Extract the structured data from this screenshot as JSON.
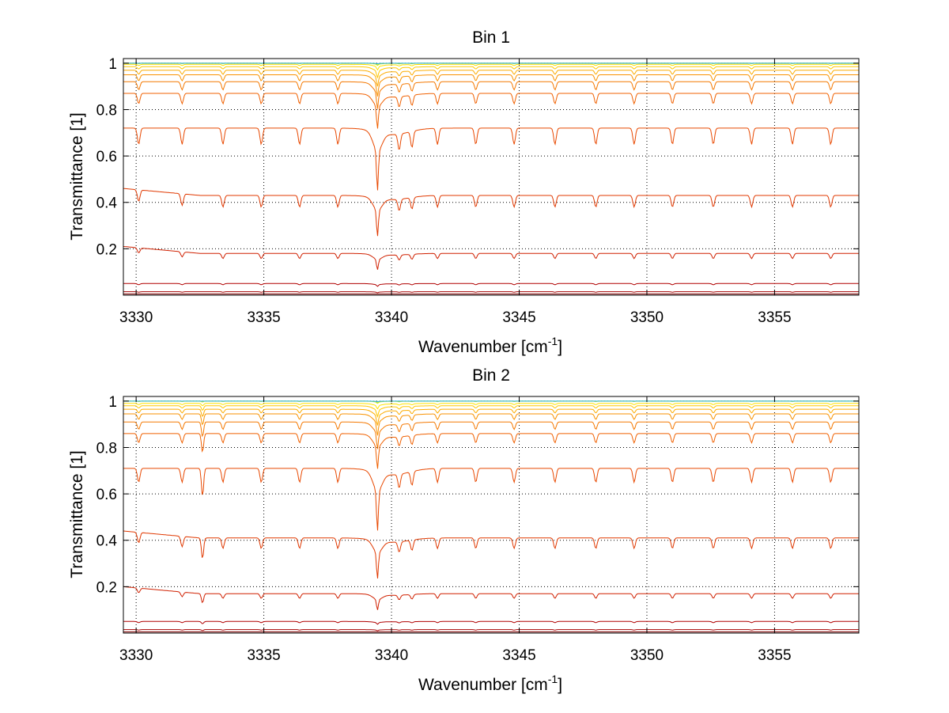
{
  "chart_data": [
    {
      "type": "line",
      "title": "Bin 1",
      "xlabel": "Wavenumber [cm",
      "xlabel_sup": "-1",
      "xlabel_end": "]",
      "ylabel": "Transmittance [1]",
      "xlim": [
        3329.5,
        3358.3
      ],
      "ylim": [
        0.0,
        1.02
      ],
      "xticks": [
        3330,
        3335,
        3340,
        3345,
        3350,
        3355
      ],
      "xtick_labels": [
        "3330",
        "3335",
        "3340",
        "3345",
        "3350",
        "3355"
      ],
      "yticks": [
        0.2,
        0.4,
        0.6,
        0.8,
        1.0
      ],
      "ytick_labels": [
        "0.2",
        "0.4",
        "0.6",
        "0.8",
        "1"
      ],
      "grid": true,
      "main_line": {
        "x": 3339.45,
        "widths": [
          0.05,
          0.25,
          0.9
        ]
      },
      "lines": [
        3330.1,
        3331.8,
        3333.4,
        3334.9,
        3336.4,
        3337.9,
        3340.3,
        3340.8,
        3341.8,
        3343.3,
        3344.8,
        3346.4,
        3348.0,
        3349.5,
        3351.0,
        3352.6,
        3354.1,
        3355.7,
        3357.2
      ],
      "series": [
        {
          "baseline": 0.005,
          "depth_main": 0.0,
          "depth_lines": 0.0,
          "color": "#7f0000"
        },
        {
          "baseline": 0.015,
          "depth_main": 0.004,
          "depth_lines": 0.002,
          "color": "#a50000"
        },
        {
          "baseline": 0.05,
          "depth_main": 0.01,
          "depth_lines": 0.005,
          "color": "#b00000"
        },
        {
          "baseline": 0.18,
          "depth_main": 0.06,
          "depth_lines": 0.022,
          "color": "#d02000"
        },
        {
          "baseline": 0.43,
          "depth_main": 0.15,
          "depth_lines": 0.05,
          "color": "#e03800"
        },
        {
          "baseline": 0.72,
          "depth_main": 0.23,
          "depth_lines": 0.07,
          "color": "#e84800"
        },
        {
          "baseline": 0.87,
          "depth_main": 0.13,
          "depth_lines": 0.045,
          "color": "#f06000"
        },
        {
          "baseline": 0.92,
          "depth_main": 0.1,
          "depth_lines": 0.035,
          "color": "#f47800"
        },
        {
          "baseline": 0.95,
          "depth_main": 0.08,
          "depth_lines": 0.026,
          "color": "#f89200"
        },
        {
          "baseline": 0.97,
          "depth_main": 0.06,
          "depth_lines": 0.018,
          "color": "#fcac00"
        },
        {
          "baseline": 0.985,
          "depth_main": 0.04,
          "depth_lines": 0.01,
          "color": "#ffc800"
        },
        {
          "baseline": 0.995,
          "depth_main": 0.02,
          "depth_lines": 0.005,
          "color": "#ffe400"
        },
        {
          "baseline": 1.0,
          "depth_main": 0.008,
          "depth_lines": 0.002,
          "color": "#d8f000"
        },
        {
          "baseline": 1.0,
          "depth_main": 0.004,
          "depth_lines": 0.001,
          "color": "#80d860"
        },
        {
          "baseline": 1.0,
          "depth_main": 0.002,
          "depth_lines": 0.0,
          "color": "#30b0e0"
        }
      ],
      "extra_line": null
    },
    {
      "type": "line",
      "title": "Bin 2",
      "xlabel": "Wavenumber [cm",
      "xlabel_sup": "-1",
      "xlabel_end": "]",
      "ylabel": "Transmittance [1]",
      "xlim": [
        3329.5,
        3358.3
      ],
      "ylim": [
        0.0,
        1.02
      ],
      "xticks": [
        3330,
        3335,
        3340,
        3345,
        3350,
        3355
      ],
      "xtick_labels": [
        "3330",
        "3335",
        "3340",
        "3345",
        "3350",
        "3355"
      ],
      "yticks": [
        0.2,
        0.4,
        0.6,
        0.8,
        1.0
      ],
      "ytick_labels": [
        "0.2",
        "0.4",
        "0.6",
        "0.8",
        "1"
      ],
      "grid": true,
      "main_line": {
        "x": 3339.45,
        "widths": [
          0.05,
          0.25,
          0.9
        ]
      },
      "lines": [
        3330.1,
        3331.8,
        3333.4,
        3334.9,
        3336.4,
        3337.9,
        3340.3,
        3340.8,
        3341.8,
        3343.3,
        3344.8,
        3346.4,
        3348.0,
        3349.5,
        3351.0,
        3352.6,
        3354.1,
        3355.7,
        3357.2
      ],
      "series": [
        {
          "baseline": 0.005,
          "depth_main": 0.0,
          "depth_lines": 0.0,
          "color": "#7f0000"
        },
        {
          "baseline": 0.015,
          "depth_main": 0.004,
          "depth_lines": 0.002,
          "color": "#a50000"
        },
        {
          "baseline": 0.05,
          "depth_main": 0.01,
          "depth_lines": 0.005,
          "color": "#b00000"
        },
        {
          "baseline": 0.17,
          "depth_main": 0.06,
          "depth_lines": 0.02,
          "color": "#d02000"
        },
        {
          "baseline": 0.41,
          "depth_main": 0.15,
          "depth_lines": 0.045,
          "color": "#e03800"
        },
        {
          "baseline": 0.71,
          "depth_main": 0.23,
          "depth_lines": 0.06,
          "color": "#e84800"
        },
        {
          "baseline": 0.86,
          "depth_main": 0.13,
          "depth_lines": 0.04,
          "color": "#f06000"
        },
        {
          "baseline": 0.91,
          "depth_main": 0.1,
          "depth_lines": 0.032,
          "color": "#f47800"
        },
        {
          "baseline": 0.945,
          "depth_main": 0.08,
          "depth_lines": 0.024,
          "color": "#f89200"
        },
        {
          "baseline": 0.965,
          "depth_main": 0.06,
          "depth_lines": 0.016,
          "color": "#fcac00"
        },
        {
          "baseline": 0.98,
          "depth_main": 0.04,
          "depth_lines": 0.01,
          "color": "#ffc800"
        },
        {
          "baseline": 0.99,
          "depth_main": 0.02,
          "depth_lines": 0.005,
          "color": "#ffe400"
        },
        {
          "baseline": 1.0,
          "depth_main": 0.008,
          "depth_lines": 0.002,
          "color": "#d8f000"
        },
        {
          "baseline": 1.0,
          "depth_main": 0.004,
          "depth_lines": 0.001,
          "color": "#80d860"
        },
        {
          "baseline": 1.0,
          "depth_main": 0.002,
          "depth_lines": 0.0,
          "color": "#30b0e0"
        }
      ],
      "extra_line": {
        "x": 3332.6,
        "strength": 0.5
      }
    }
  ]
}
